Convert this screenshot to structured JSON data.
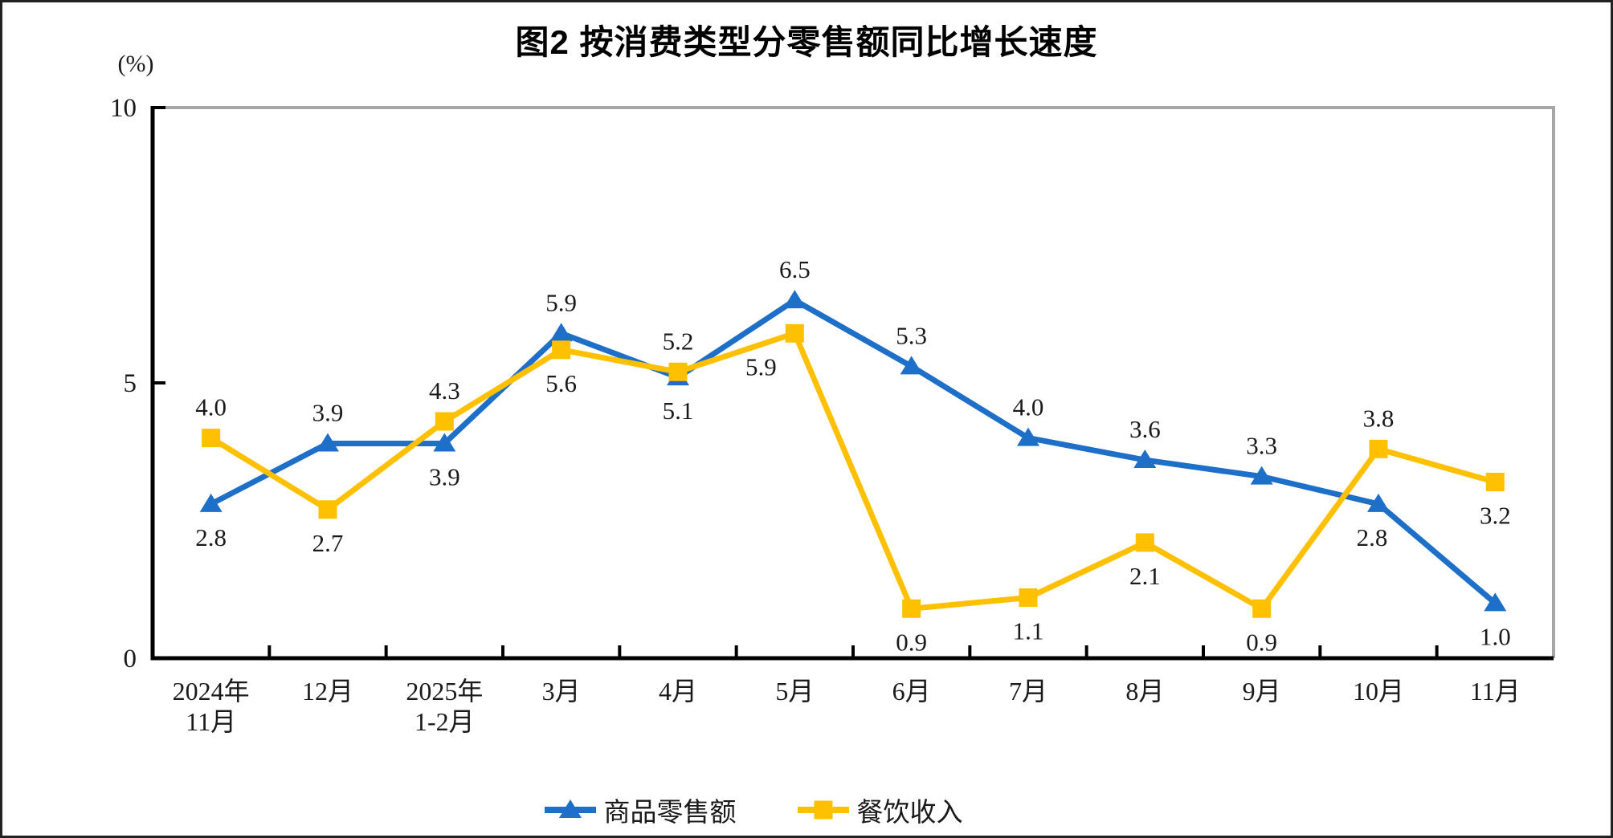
{
  "title": "图2 按消费类型分零售额同比增长速度",
  "chart_data": {
    "type": "line",
    "title": "图2 按消费类型分零售额同比增长速度",
    "ylabel_unit": "(%)",
    "ylim": [
      0,
      10
    ],
    "yticks": [
      0,
      5,
      10
    ],
    "grid": false,
    "legend_position": "bottom",
    "axis_color": "#000000",
    "frame_color": "#a6a6a6",
    "label_color": "#1a1a1a",
    "categories": [
      [
        "2024年",
        "11月"
      ],
      [
        "12月"
      ],
      [
        "2025年",
        "1-2月"
      ],
      [
        "3月"
      ],
      [
        "4月"
      ],
      [
        "5月"
      ],
      [
        "6月"
      ],
      [
        "7月"
      ],
      [
        "8月"
      ],
      [
        "9月"
      ],
      [
        "10月"
      ],
      [
        "11月"
      ]
    ],
    "series": [
      {
        "name": "商品零售额",
        "color": "#1e6fc8",
        "marker": "triangle",
        "values": [
          2.8,
          3.9,
          3.9,
          5.9,
          5.1,
          6.5,
          5.3,
          4.0,
          3.6,
          3.3,
          2.8,
          1.0
        ],
        "label_side": [
          "below",
          "above",
          "below",
          "above",
          "below",
          "above",
          "above",
          "above",
          "above",
          "above",
          "below",
          "below"
        ],
        "label_dx": [
          0,
          0,
          0,
          0,
          0,
          0,
          0,
          0,
          0,
          0,
          -8,
          0
        ]
      },
      {
        "name": "餐饮收入",
        "color": "#ffc000",
        "marker": "square",
        "values": [
          4.0,
          2.7,
          4.3,
          5.6,
          5.2,
          5.9,
          0.9,
          1.1,
          2.1,
          0.9,
          3.8,
          3.2
        ],
        "label_side": [
          "above",
          "below",
          "above",
          "below",
          "above",
          "below",
          "below",
          "below",
          "below",
          "below",
          "above",
          "below"
        ],
        "label_dx": [
          0,
          0,
          0,
          0,
          0,
          -42,
          0,
          0,
          0,
          0,
          0,
          0
        ]
      }
    ]
  }
}
